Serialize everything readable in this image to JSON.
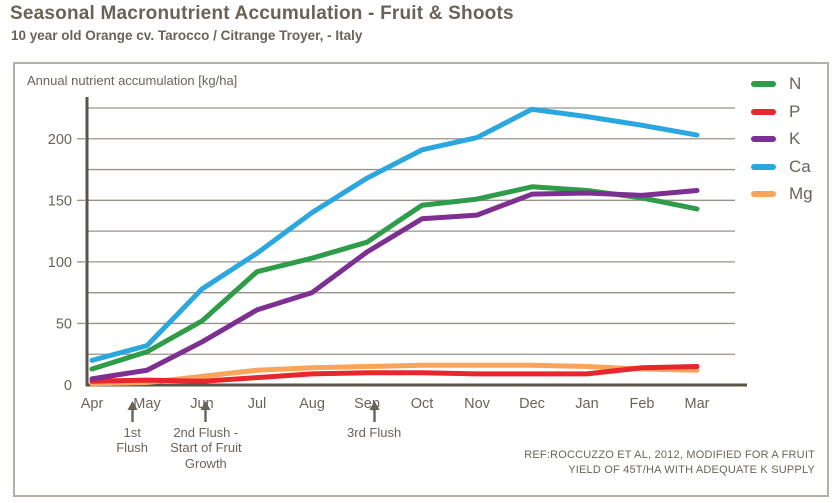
{
  "header": {
    "title": "Seasonal Macronutrient Accumulation - Fruit & Shoots",
    "subtitle": "10 year old Orange cv. Tarocco / Citrange Troyer, - Italy"
  },
  "chart_data": {
    "type": "line",
    "title": "Annual nutrient accumulation [kg/ha]",
    "categories": [
      "Apr",
      "May",
      "Jun",
      "Jul",
      "Aug",
      "Sep",
      "Oct",
      "Nov",
      "Dec",
      "Jan",
      "Feb",
      "Mar"
    ],
    "series": [
      {
        "name": "N",
        "color": "#2e9c49",
        "values": [
          13,
          27,
          52,
          92,
          103,
          116,
          146,
          151,
          161,
          158,
          152,
          143
        ]
      },
      {
        "name": "P",
        "color": "#e8262d",
        "values": [
          3,
          4,
          3,
          6,
          9,
          10,
          10,
          9,
          9,
          9,
          14,
          15
        ]
      },
      {
        "name": "K",
        "color": "#7d3092",
        "values": [
          5,
          12,
          35,
          61,
          75,
          108,
          135,
          138,
          155,
          156,
          154,
          158
        ]
      },
      {
        "name": "Ca",
        "color": "#2ba7e0",
        "values": [
          20,
          32,
          78,
          107,
          140,
          168,
          191,
          201,
          224,
          218,
          211,
          203
        ]
      },
      {
        "name": "Mg",
        "color": "#f8a55b",
        "values": [
          1,
          2,
          7,
          12,
          14,
          15,
          16,
          16,
          16,
          15,
          13,
          12
        ]
      }
    ],
    "ylim": [
      0,
      225
    ],
    "y_major_ticks": [
      0,
      50,
      100,
      150,
      200
    ],
    "y_minor_step": 25,
    "grid": true,
    "legend_position": "right",
    "xlabel": "",
    "ylabel": "kg/ha"
  },
  "annotations": [
    {
      "lines": [
        "1st",
        "Flush"
      ],
      "month_offset": 0.73
    },
    {
      "lines": [
        "2nd Flush -",
        "Start of Fruit",
        "Growth"
      ],
      "month_offset": 2.07
    },
    {
      "lines": [
        "3rd Flush"
      ],
      "month_offset": 5.13
    }
  ],
  "reference": [
    "REF:ROCCUZZO ET AL, 2012, MODIFIED  FOR A FRUIT",
    "YIELD OF 45T/HA WITH ADEQUATE K SUPPLY"
  ],
  "colors": {
    "text": "#6c6358",
    "axis": "#5a5347",
    "grid": "#99928a",
    "box_border": "#b5afa8"
  }
}
